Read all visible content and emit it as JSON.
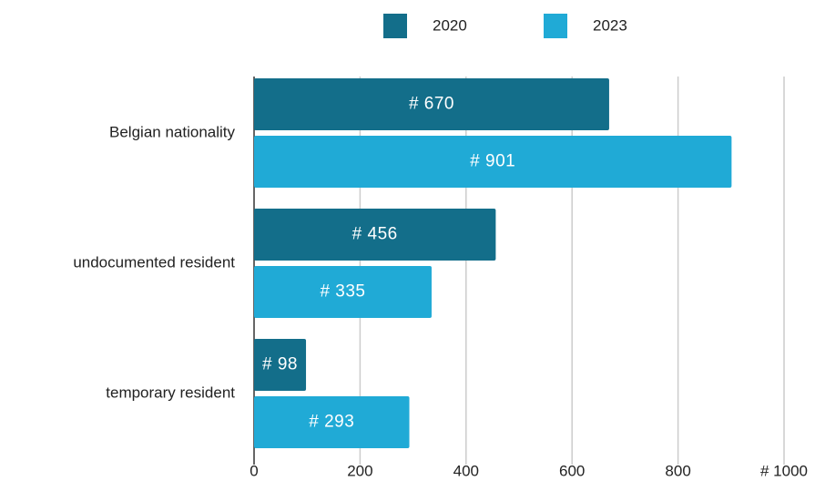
{
  "chart_data": {
    "type": "bar",
    "orientation": "horizontal",
    "categories": [
      "Belgian nationality",
      "undocumented resident",
      "temporary resident"
    ],
    "series": [
      {
        "name": "2020",
        "color": "#136e8a",
        "values": [
          670,
          456,
          98
        ],
        "value_labels": [
          "# 670",
          "# 456",
          "# 98"
        ]
      },
      {
        "name": "2023",
        "color": "#20aad6",
        "values": [
          901,
          335,
          293
        ],
        "value_labels": [
          "# 901",
          "# 335",
          "# 293"
        ]
      }
    ],
    "xlim": [
      0,
      1000
    ],
    "xticks": [
      0,
      200,
      400,
      600,
      800,
      {
        "value": 1000,
        "label": "# 1000"
      }
    ],
    "grid": true,
    "legend": "top"
  }
}
